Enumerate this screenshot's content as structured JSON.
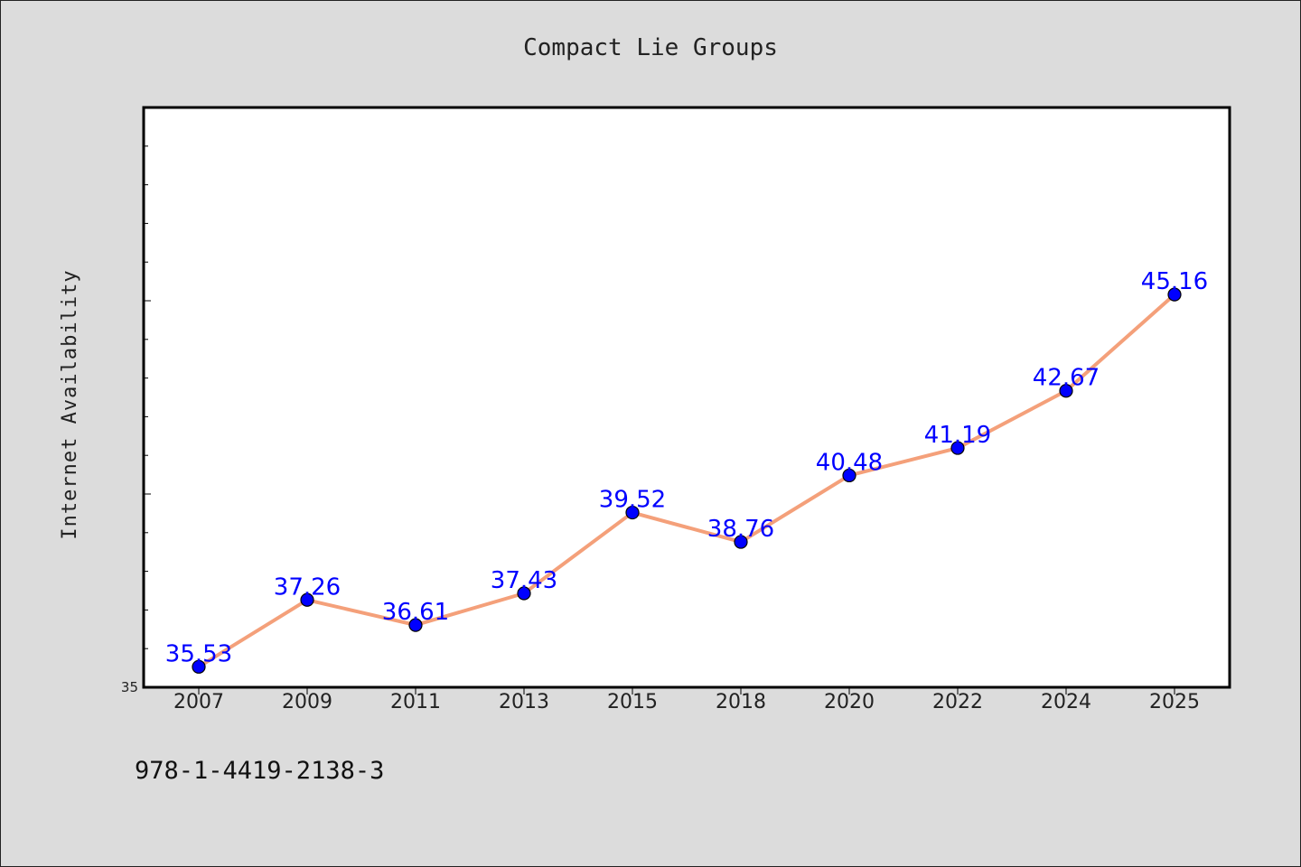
{
  "chart_data": {
    "type": "line",
    "title": "Compact Lie Groups",
    "xlabel": "",
    "ylabel": "Internet Availability",
    "categories": [
      "2007",
      "2009",
      "2011",
      "2013",
      "2015",
      "2018",
      "2020",
      "2022",
      "2024",
      "2025"
    ],
    "series": [
      {
        "values": [
          35.53,
          37.26,
          36.61,
          37.43,
          39.52,
          38.76,
          40.48,
          41.19,
          42.67,
          45.16
        ],
        "data_labels": [
          "35.53",
          "37.26",
          "36.61",
          "37.43",
          "39.52",
          "38.76",
          "40.48",
          "41.19",
          "42.67",
          "45.16"
        ]
      }
    ],
    "ylim": [
      35,
      50
    ],
    "y_tick_labels": [
      "35"
    ],
    "grid": false,
    "legend": "none",
    "colors": {
      "line": "#f4a07a",
      "marker": "#0000ff",
      "data_label": "#0000ff",
      "background": "#dcdcdc",
      "plot_background": "#ffffff"
    }
  },
  "footer": {
    "isbn": "978-1-4419-2138-3"
  }
}
